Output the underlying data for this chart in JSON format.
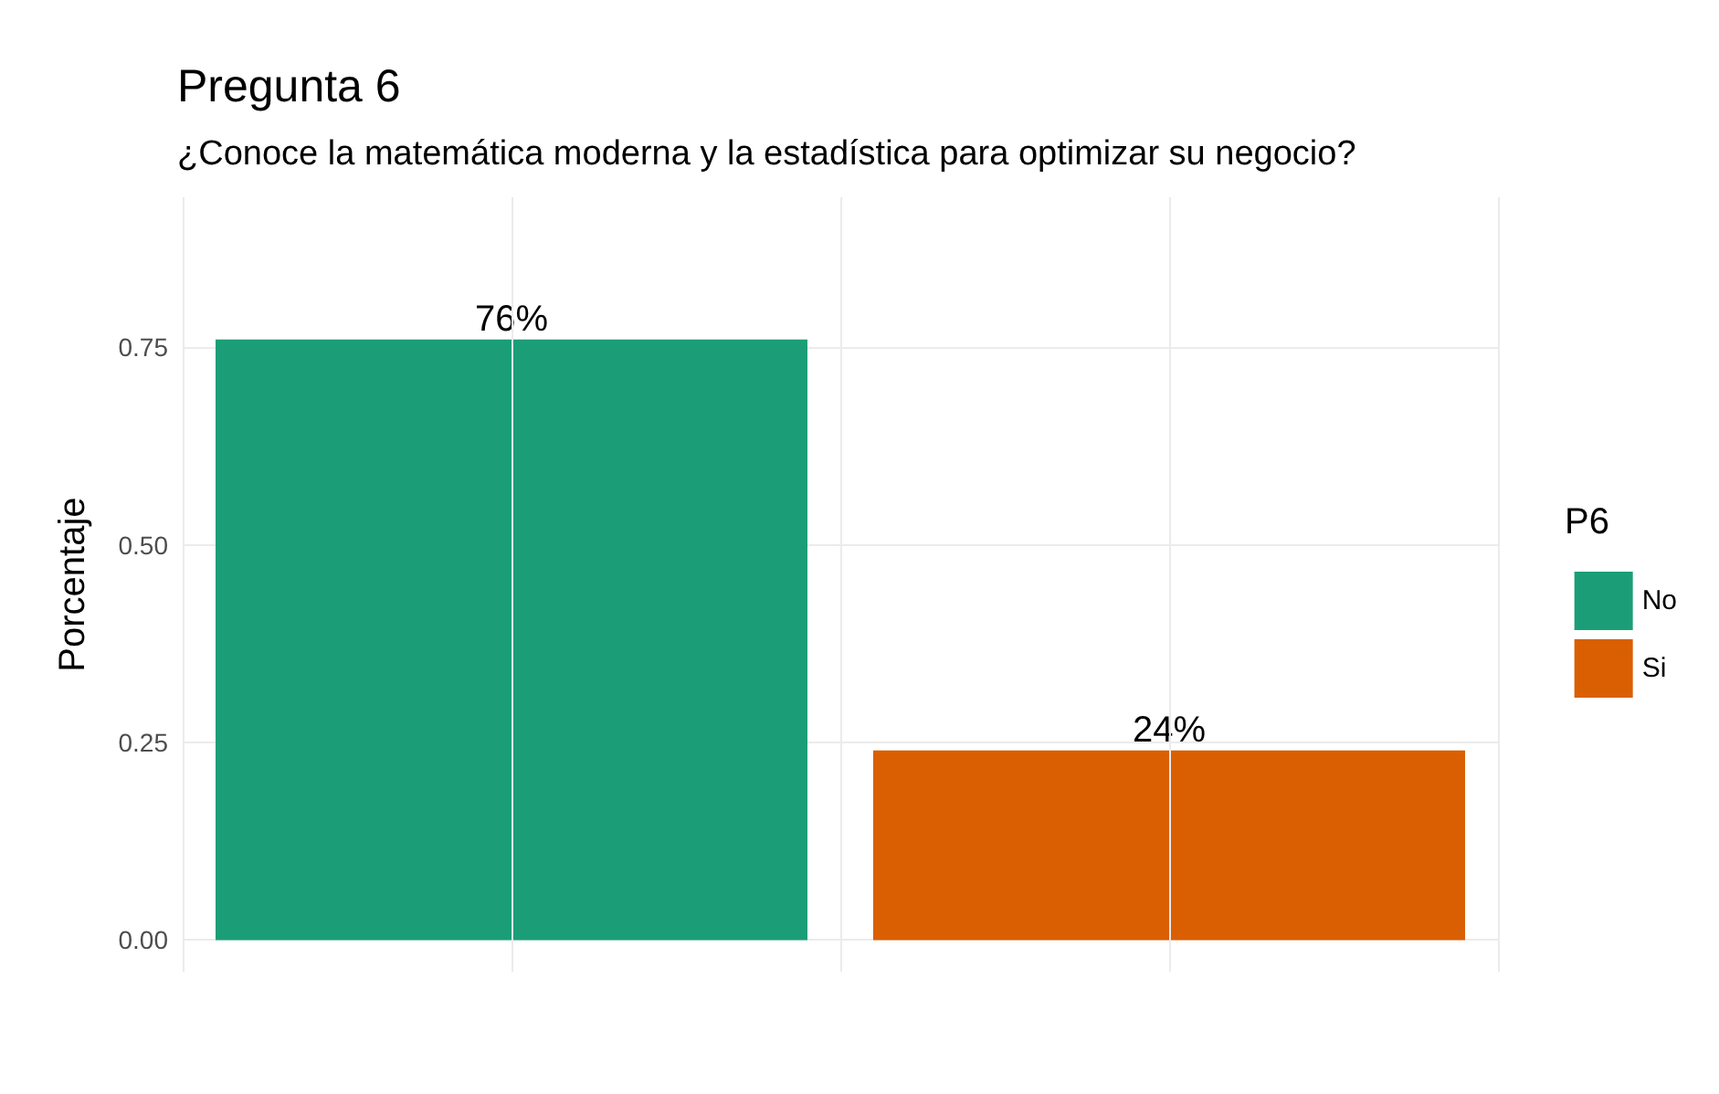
{
  "chart_data": {
    "type": "bar",
    "title": "Pregunta 6",
    "subtitle": "¿Conoce la matemática moderna y la estadística para optimizar su negocio?",
    "ylabel": "Porcentaje",
    "legend_title": "P6",
    "categories": [
      null,
      null
    ],
    "stacked": true,
    "series": [
      {
        "name": "No",
        "color": "#1b9e77",
        "values": [
          0.76,
          null
        ],
        "value_labels": [
          "76%",
          null
        ]
      },
      {
        "name": "Si",
        "color": "#d95f02",
        "values": [
          null,
          0.24
        ],
        "value_labels": [
          null,
          "24%"
        ]
      }
    ],
    "ylim": [
      -0.04,
      0.94
    ],
    "yticks": [
      {
        "value": 0,
        "label": "0.00"
      },
      {
        "value": 0.25,
        "label": "0.25"
      },
      {
        "value": 0.5,
        "label": "0.50"
      },
      {
        "value": 0.75,
        "label": "0.75"
      }
    ],
    "grid": true,
    "legend": "right"
  }
}
